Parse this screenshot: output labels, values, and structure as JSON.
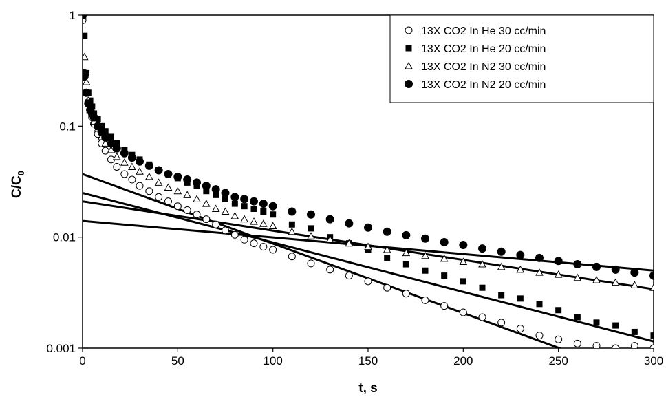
{
  "chart_data": {
    "type": "scatter",
    "title": "",
    "xlabel": "t, s",
    "ylabel_main": "C/C",
    "ylabel_sub": "0",
    "xlim": [
      0,
      300
    ],
    "ylim": [
      0.001,
      1
    ],
    "yscale": "log",
    "xticks": [
      0,
      50,
      100,
      150,
      200,
      250,
      300
    ],
    "xtick_labels": [
      "0",
      "50",
      "100",
      "150",
      "200",
      "250",
      "300"
    ],
    "yticks": [
      0.001,
      0.01,
      0.1,
      1
    ],
    "ytick_labels": [
      "0.001",
      "0.01",
      "0.1",
      "1"
    ],
    "grid": false,
    "legend_position": "top-right",
    "series": [
      {
        "name": "13X CO2 In He 30 cc/min",
        "marker": "open-circle",
        "color": "#000000",
        "x": [
          0,
          1,
          2,
          3,
          4,
          5,
          6,
          8,
          10,
          12,
          15,
          18,
          22,
          26,
          30,
          35,
          40,
          45,
          50,
          55,
          60,
          65,
          70,
          75,
          80,
          85,
          90,
          95,
          100,
          110,
          120,
          130,
          140,
          150,
          160,
          170,
          180,
          190,
          200,
          210,
          220,
          230,
          240,
          250,
          260,
          270,
          280,
          290,
          300
        ],
        "y": [
          0.9,
          0.3,
          0.2,
          0.165,
          0.14,
          0.12,
          0.105,
          0.085,
          0.07,
          0.06,
          0.05,
          0.043,
          0.037,
          0.033,
          0.029,
          0.026,
          0.023,
          0.021,
          0.019,
          0.0175,
          0.016,
          0.0145,
          0.013,
          0.0115,
          0.0105,
          0.0095,
          0.0088,
          0.0082,
          0.0077,
          0.0067,
          0.0058,
          0.0051,
          0.0045,
          0.004,
          0.0035,
          0.0031,
          0.0027,
          0.0024,
          0.0021,
          0.0019,
          0.0017,
          0.0015,
          0.0013,
          0.0012,
          0.0011,
          0.00105,
          0.001,
          0.00105,
          0.001
        ]
      },
      {
        "name": "13X CO2 In He 20 cc/min",
        "marker": "filled-square",
        "color": "#000000",
        "x": [
          0,
          1,
          2,
          3,
          4,
          5,
          6,
          8,
          10,
          12,
          15,
          18,
          22,
          26,
          30,
          35,
          40,
          45,
          50,
          55,
          60,
          65,
          70,
          75,
          80,
          85,
          90,
          95,
          100,
          110,
          120,
          130,
          140,
          150,
          160,
          170,
          180,
          190,
          200,
          210,
          220,
          230,
          240,
          250,
          260,
          270,
          280,
          290,
          300
        ],
        "y": [
          1.0,
          0.65,
          0.3,
          0.2,
          0.17,
          0.15,
          0.13,
          0.115,
          0.1,
          0.09,
          0.08,
          0.07,
          0.061,
          0.055,
          0.05,
          0.045,
          0.04,
          0.037,
          0.034,
          0.031,
          0.029,
          0.026,
          0.024,
          0.022,
          0.02,
          0.019,
          0.018,
          0.017,
          0.016,
          0.013,
          0.012,
          0.01,
          0.0088,
          0.0077,
          0.0065,
          0.0057,
          0.005,
          0.0045,
          0.004,
          0.0035,
          0.003,
          0.0028,
          0.0025,
          0.0022,
          0.0019,
          0.0017,
          0.0016,
          0.0014,
          0.0013
        ]
      },
      {
        "name": "13X CO2 In N2 30 cc/min",
        "marker": "open-triangle",
        "color": "#000000",
        "x": [
          0,
          1,
          2,
          3,
          4,
          5,
          6,
          8,
          10,
          12,
          15,
          18,
          22,
          26,
          30,
          35,
          40,
          45,
          50,
          55,
          60,
          65,
          70,
          75,
          80,
          85,
          90,
          95,
          100,
          110,
          120,
          130,
          140,
          150,
          160,
          170,
          180,
          190,
          200,
          210,
          220,
          230,
          240,
          250,
          260,
          270,
          280,
          290,
          300
        ],
        "y": [
          1.0,
          0.42,
          0.25,
          0.17,
          0.14,
          0.125,
          0.11,
          0.095,
          0.08,
          0.07,
          0.061,
          0.053,
          0.047,
          0.043,
          0.039,
          0.035,
          0.031,
          0.028,
          0.026,
          0.024,
          0.022,
          0.02,
          0.018,
          0.017,
          0.0155,
          0.0145,
          0.0138,
          0.0132,
          0.0126,
          0.0112,
          0.0102,
          0.0095,
          0.0088,
          0.0082,
          0.0077,
          0.0072,
          0.0068,
          0.0064,
          0.006,
          0.0057,
          0.0054,
          0.0051,
          0.0048,
          0.0046,
          0.0043,
          0.0041,
          0.0039,
          0.0037,
          0.0035
        ]
      },
      {
        "name": "13X CO2 In N2 20 cc/min",
        "marker": "filled-circle",
        "color": "#000000",
        "x": [
          0,
          1,
          2,
          3,
          4,
          5,
          6,
          8,
          10,
          12,
          15,
          18,
          22,
          26,
          30,
          35,
          40,
          45,
          50,
          55,
          60,
          65,
          70,
          75,
          80,
          85,
          90,
          95,
          100,
          110,
          120,
          130,
          140,
          150,
          160,
          170,
          180,
          190,
          200,
          210,
          220,
          230,
          240,
          250,
          260,
          270,
          280,
          290,
          300
        ],
        "y": [
          1.0,
          0.28,
          0.2,
          0.16,
          0.14,
          0.13,
          0.12,
          0.1,
          0.088,
          0.079,
          0.07,
          0.063,
          0.057,
          0.052,
          0.048,
          0.044,
          0.04,
          0.037,
          0.035,
          0.033,
          0.031,
          0.029,
          0.027,
          0.025,
          0.023,
          0.022,
          0.021,
          0.02,
          0.019,
          0.017,
          0.016,
          0.0145,
          0.0133,
          0.0122,
          0.0112,
          0.0104,
          0.0097,
          0.009,
          0.0085,
          0.0079,
          0.0074,
          0.0069,
          0.0065,
          0.0061,
          0.0057,
          0.0054,
          0.0051,
          0.0048,
          0.0045
        ]
      }
    ],
    "fit_lines": [
      {
        "x": [
          0,
          300
        ],
        "y": [
          0.037,
          0.00049
        ]
      },
      {
        "x": [
          0,
          300
        ],
        "y": [
          0.025,
          0.00115
        ]
      },
      {
        "x": [
          0,
          300
        ],
        "y": [
          0.021,
          0.0034
        ]
      },
      {
        "x": [
          0,
          300
        ],
        "y": [
          0.014,
          0.005
        ]
      }
    ]
  }
}
